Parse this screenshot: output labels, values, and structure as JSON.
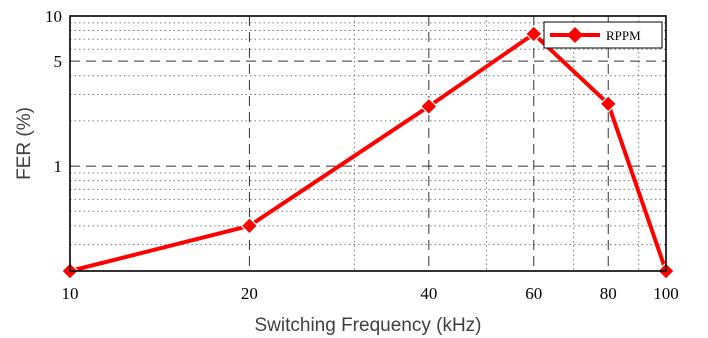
{
  "chart_data": {
    "type": "line",
    "x_scale": "log",
    "y_scale": "log",
    "xlabel": "Switching Frequency (kHz)",
    "ylabel": "FER (%)",
    "xlim": [
      10,
      100
    ],
    "ylim": [
      0.2,
      10
    ],
    "x_ticks": [
      10,
      20,
      40,
      60,
      80,
      100
    ],
    "x_tick_labels": [
      "10",
      "20",
      "40",
      "60",
      "80",
      "100"
    ],
    "y_ticks": [
      1,
      5,
      10
    ],
    "y_tick_labels": [
      "1",
      "5",
      "10"
    ],
    "grid": true,
    "legend_position": "top-right",
    "series": [
      {
        "name": "RPPM",
        "color": "#ff0000",
        "marker": "diamond",
        "x": [
          10,
          20,
          40,
          60,
          80,
          100
        ],
        "y": [
          0.2,
          0.4,
          2.5,
          7.6,
          2.6,
          0.2
        ]
      }
    ]
  }
}
